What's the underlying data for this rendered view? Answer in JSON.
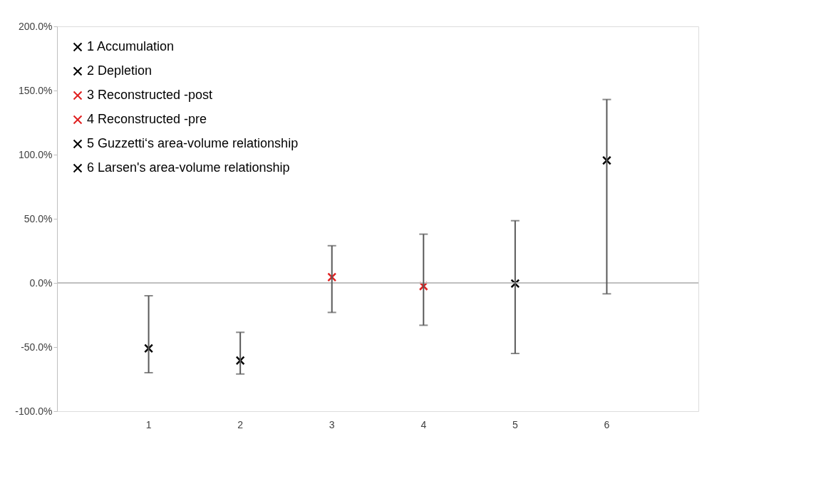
{
  "chart_data": {
    "type": "scatter",
    "categories": [
      "1",
      "2",
      "3",
      "4",
      "5",
      "6"
    ],
    "series": [
      {
        "name": "1 Accumulation",
        "color": "#000000",
        "values": [
          -51,
          null,
          null,
          null,
          null,
          null
        ],
        "errors": [
          [
            -70,
            -10
          ],
          null,
          null,
          null,
          null,
          null
        ]
      },
      {
        "name": "2 Depletion",
        "color": "#000000",
        "values": [
          null,
          -60.5,
          null,
          null,
          null,
          null
        ],
        "errors": [
          null,
          [
            -71,
            -38.5
          ],
          null,
          null,
          null,
          null
        ]
      },
      {
        "name": "3 Reconstructed -post",
        "color": "#e02020",
        "values": [
          null,
          null,
          4.5,
          null,
          null,
          null
        ],
        "errors": [
          null,
          null,
          [
            -23,
            29
          ],
          null,
          null,
          null
        ]
      },
      {
        "name": "4 Reconstructed -pre",
        "color": "#e02020",
        "values": [
          null,
          null,
          null,
          -2.5,
          null,
          null
        ],
        "errors": [
          null,
          null,
          null,
          [
            -33,
            38
          ],
          null,
          null
        ]
      },
      {
        "name": "5 Guzzetti‘s  area-volume relationship",
        "color": "#000000",
        "values": [
          null,
          null,
          null,
          null,
          -0.5,
          null
        ],
        "errors": [
          null,
          null,
          null,
          null,
          [
            -55,
            48.5
          ],
          null
        ]
      },
      {
        "name": "6 Larsen's area-volume relationship",
        "color": "#000000",
        "values": [
          null,
          null,
          null,
          null,
          null,
          95.5
        ],
        "errors": [
          null,
          null,
          null,
          null,
          null,
          [
            -8.5,
            143
          ]
        ]
      }
    ],
    "ylim": [
      -100,
      200
    ],
    "yticks": [
      {
        "value": -100,
        "label": "-100.0%"
      },
      {
        "value": -50,
        "label": "-50.0%"
      },
      {
        "value": 0,
        "label": "0.0%"
      },
      {
        "value": 50,
        "label": "50.0%"
      },
      {
        "value": 100,
        "label": "100.0%"
      },
      {
        "value": 150,
        "label": "150.0%"
      },
      {
        "value": 200,
        "label": "200.0%"
      }
    ],
    "ref_lines": [
      {
        "axis": "y",
        "value": 0,
        "color": "#bfbfbf"
      }
    ],
    "legend": "top left",
    "marker": "cross",
    "grid": false
  }
}
